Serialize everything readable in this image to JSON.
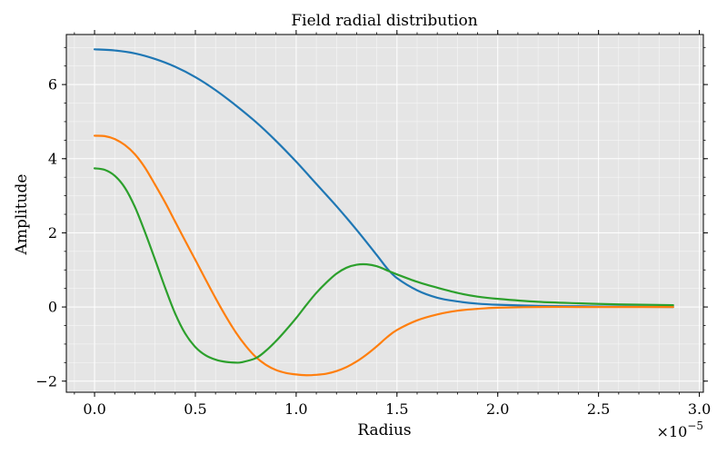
{
  "chart_data": {
    "type": "line",
    "title": "Field radial distribution",
    "xlabel": "Radius",
    "ylabel": "Amplitude",
    "x_scale_factor_label": "×10",
    "x_scale_exponent": "−5",
    "xlim": [
      -0.14,
      3.02
    ],
    "ylim": [
      -2.3,
      7.35
    ],
    "x_ticks": [
      0.0,
      0.5,
      1.0,
      1.5,
      2.0,
      2.5,
      3.0
    ],
    "x_tick_labels": [
      "0.0",
      "0.5",
      "1.0",
      "1.5",
      "2.0",
      "2.5",
      "3.0"
    ],
    "y_ticks": [
      -2,
      0,
      2,
      4,
      6
    ],
    "y_tick_labels": [
      "−2",
      "0",
      "2",
      "4",
      "6"
    ],
    "grid": true,
    "background": "#e5e5e5",
    "series": [
      {
        "color": "#1f77b4",
        "x": [
          0.0,
          0.1,
          0.2,
          0.3,
          0.4,
          0.5,
          0.6,
          0.7,
          0.8,
          0.9,
          1.0,
          1.1,
          1.2,
          1.3,
          1.4,
          1.45,
          1.5,
          1.6,
          1.7,
          1.8,
          1.9,
          2.0,
          2.2,
          2.4,
          2.6,
          2.87
        ],
        "y": [
          6.95,
          6.92,
          6.84,
          6.69,
          6.48,
          6.2,
          5.85,
          5.44,
          4.99,
          4.48,
          3.92,
          3.32,
          2.72,
          2.08,
          1.4,
          1.05,
          0.78,
          0.45,
          0.25,
          0.15,
          0.09,
          0.06,
          0.03,
          0.02,
          0.01,
          0.0
        ]
      },
      {
        "color": "#ff7f0e",
        "x": [
          0.0,
          0.05,
          0.1,
          0.15,
          0.2,
          0.25,
          0.3,
          0.35,
          0.4,
          0.45,
          0.5,
          0.55,
          0.6,
          0.65,
          0.7,
          0.75,
          0.8,
          0.85,
          0.9,
          0.95,
          1.0,
          1.05,
          1.1,
          1.15,
          1.2,
          1.25,
          1.3,
          1.35,
          1.4,
          1.45,
          1.5,
          1.6,
          1.7,
          1.8,
          1.9,
          2.0,
          2.2,
          2.4,
          2.6,
          2.87
        ],
        "y": [
          4.62,
          4.61,
          4.53,
          4.37,
          4.12,
          3.76,
          3.3,
          2.82,
          2.3,
          1.78,
          1.27,
          0.75,
          0.24,
          -0.24,
          -0.68,
          -1.05,
          -1.35,
          -1.56,
          -1.7,
          -1.78,
          -1.82,
          -1.84,
          -1.83,
          -1.8,
          -1.73,
          -1.62,
          -1.47,
          -1.28,
          -1.06,
          -0.82,
          -0.62,
          -0.36,
          -0.2,
          -0.1,
          -0.05,
          -0.02,
          0.0,
          0.0,
          0.0,
          0.0
        ]
      },
      {
        "color": "#2ca02c",
        "x": [
          0.0,
          0.05,
          0.1,
          0.15,
          0.2,
          0.25,
          0.3,
          0.35,
          0.4,
          0.45,
          0.5,
          0.55,
          0.6,
          0.65,
          0.7,
          0.73,
          0.8,
          0.85,
          0.9,
          0.95,
          1.0,
          1.05,
          1.1,
          1.15,
          1.2,
          1.25,
          1.3,
          1.35,
          1.4,
          1.45,
          1.5,
          1.6,
          1.7,
          1.8,
          1.9,
          2.0,
          2.2,
          2.4,
          2.6,
          2.87
        ],
        "y": [
          3.74,
          3.7,
          3.54,
          3.22,
          2.7,
          2.02,
          1.28,
          0.52,
          -0.18,
          -0.72,
          -1.08,
          -1.3,
          -1.42,
          -1.48,
          -1.5,
          -1.49,
          -1.38,
          -1.18,
          -0.92,
          -0.62,
          -0.3,
          0.05,
          0.38,
          0.66,
          0.9,
          1.06,
          1.14,
          1.15,
          1.1,
          0.99,
          0.88,
          0.68,
          0.52,
          0.38,
          0.28,
          0.22,
          0.14,
          0.1,
          0.07,
          0.05
        ]
      }
    ]
  }
}
